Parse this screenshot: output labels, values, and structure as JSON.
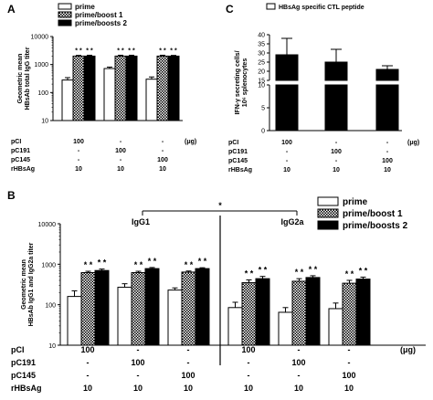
{
  "chart_data": [
    {
      "panel": "A",
      "type": "bar",
      "ylabel": "Geometric mean\nHBsAb total IgG titer",
      "yscale": "log",
      "ylim": [
        10,
        10000
      ],
      "yticks": [
        "10",
        "100",
        "1000",
        "10000"
      ],
      "legend": [
        "prime",
        "prime/boost 1",
        "prime/boosts 2"
      ],
      "legend_position": "top",
      "groups": [
        {
          "values": [
            280,
            2000,
            2000
          ],
          "errors": [
            60,
            120,
            150
          ],
          "stars": [
            "",
            "* *",
            "* *"
          ]
        },
        {
          "values": [
            720,
            2000,
            2000
          ],
          "errors": [
            90,
            150,
            150
          ],
          "stars": [
            "",
            "* *",
            "* *"
          ]
        },
        {
          "values": [
            300,
            2000,
            2000
          ],
          "errors": [
            60,
            150,
            120
          ],
          "stars": [
            "",
            "* *",
            "* *"
          ]
        }
      ],
      "conditions": {
        "rows": [
          {
            "label": "pCI",
            "values": [
              "100",
              "-",
              "-"
            ]
          },
          {
            "label": "pC191",
            "values": [
              "-",
              "100",
              "-"
            ]
          },
          {
            "label": "pC145",
            "values": [
              "-",
              "-",
              "100"
            ]
          },
          {
            "label": "rHBsAg",
            "values": [
              "10",
              "10",
              "10"
            ]
          }
        ],
        "unit": "(μg)"
      }
    },
    {
      "panel": "C",
      "type": "bar",
      "ylabel": "IFN-γ secreting cells/\n10⁶ splenocytes",
      "yscale": "broken",
      "ylim_lower": [
        0,
        10
      ],
      "ylim_upper": [
        15,
        40
      ],
      "yticks": [
        "0",
        "5",
        "10",
        "15",
        "20",
        "25",
        "30",
        "35",
        "40"
      ],
      "legend": [
        "HBsAg specific CTL peptide"
      ],
      "legend_position": "top-left",
      "values": [
        29,
        25,
        21
      ],
      "errors": [
        9,
        7,
        2
      ],
      "conditions": {
        "rows": [
          {
            "label": "pCI",
            "values": [
              "100",
              "-",
              "-"
            ]
          },
          {
            "label": "pC191",
            "values": [
              "-",
              "100",
              "-"
            ]
          },
          {
            "label": "pC145",
            "values": [
              "-",
              "-",
              "100"
            ]
          },
          {
            "label": "rHBsAg",
            "values": [
              "10",
              "10",
              "10"
            ]
          }
        ],
        "unit": "(μg)"
      }
    },
    {
      "panel": "B",
      "type": "bar",
      "ylabel": "Geometric mean\nHBsAb IgG1 and IgG2a titer",
      "yscale": "log",
      "ylim": [
        10,
        10000
      ],
      "yticks": [
        "10",
        "100",
        "1000",
        "10000"
      ],
      "legend": [
        "prime",
        "prime/boost 1",
        "prime/boosts 2"
      ],
      "legend_position": "top-right",
      "sections": [
        "IgG1",
        "IgG2a"
      ],
      "significance_star": "*",
      "groups": [
        {
          "values": [
            160,
            620,
            700
          ],
          "errors": [
            60,
            50,
            60
          ],
          "stars": [
            "",
            "* *",
            "* *"
          ]
        },
        {
          "values": [
            270,
            620,
            780
          ],
          "errors": [
            60,
            50,
            50
          ],
          "stars": [
            "",
            "* *",
            "* *"
          ]
        },
        {
          "values": [
            230,
            640,
            780
          ],
          "errors": [
            30,
            40,
            40
          ],
          "stars": [
            "",
            "* *",
            "* *"
          ]
        },
        {
          "values": [
            85,
            350,
            440
          ],
          "errors": [
            30,
            60,
            60
          ],
          "stars": [
            "",
            "* *",
            "* *"
          ]
        },
        {
          "values": [
            65,
            380,
            470
          ],
          "errors": [
            20,
            60,
            50
          ],
          "stars": [
            "",
            "* *",
            "* *"
          ]
        },
        {
          "values": [
            80,
            340,
            430
          ],
          "errors": [
            30,
            60,
            50
          ],
          "stars": [
            "",
            "* *",
            "* *"
          ]
        }
      ],
      "conditions": {
        "rows": [
          {
            "label": "pCI",
            "values": [
              "100",
              "-",
              "-",
              "100",
              "-",
              "-"
            ]
          },
          {
            "label": "pC191",
            "values": [
              "-",
              "100",
              "-",
              "-",
              "100",
              "-"
            ]
          },
          {
            "label": "pC145",
            "values": [
              "-",
              "-",
              "100",
              "-",
              "-",
              "100"
            ]
          },
          {
            "label": "rHBsAg",
            "values": [
              "10",
              "10",
              "10",
              "10",
              "10",
              "10"
            ]
          }
        ],
        "unit": "(μg)"
      }
    }
  ],
  "colors": {
    "prime": "#ffffff",
    "boost1": "#9a9a9a",
    "boost2": "#000000",
    "stroke": "#000000"
  }
}
